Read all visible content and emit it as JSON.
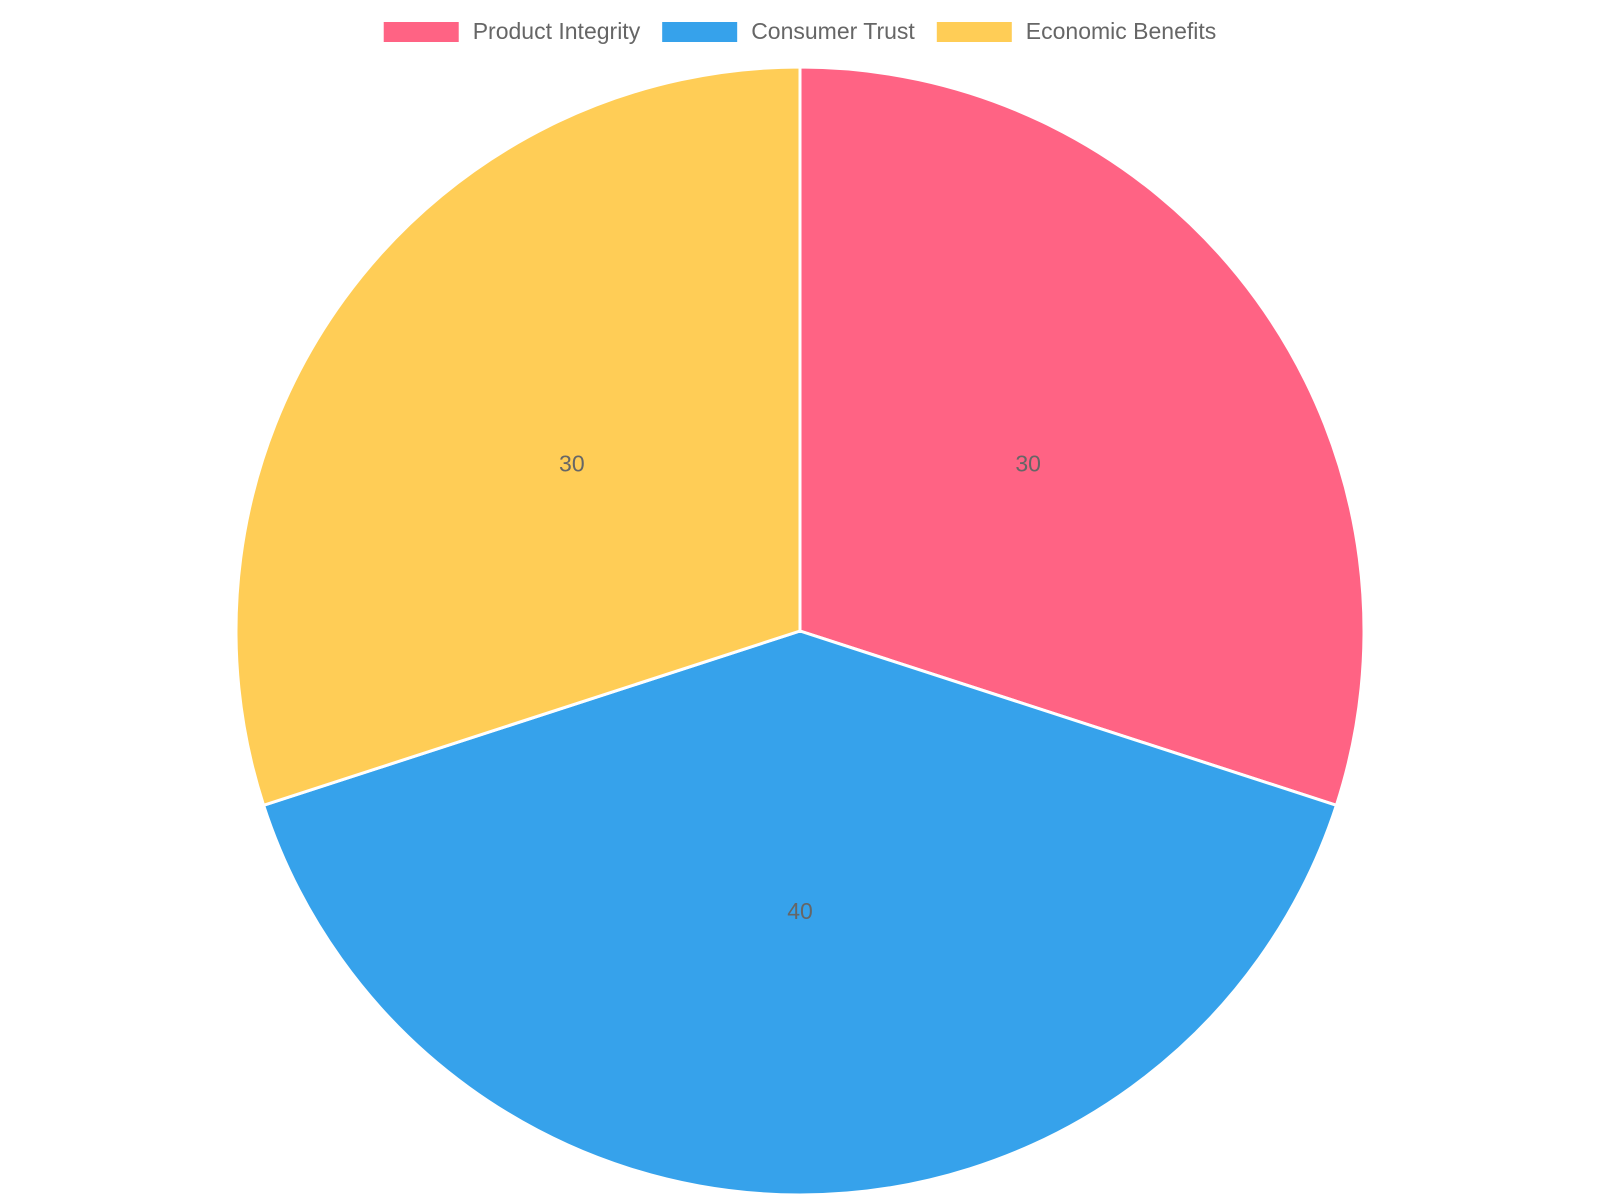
{
  "chart_data": {
    "type": "pie",
    "categories": [
      "Product Integrity",
      "Consumer Trust",
      "Economic Benefits"
    ],
    "values": [
      30,
      40,
      30
    ],
    "colors": [
      "#ff6384",
      "#36a2eb",
      "#ffcd56"
    ],
    "legend": "top"
  }
}
